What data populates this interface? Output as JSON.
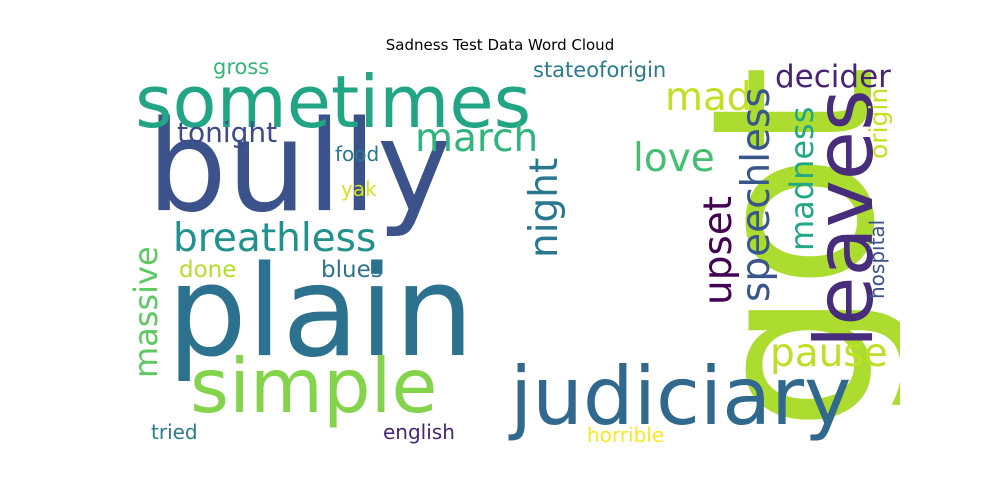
{
  "title": "Sadness Test Data Word Cloud",
  "words": [
    {
      "key": "got",
      "text": "got",
      "color": "#addc30"
    },
    {
      "key": "bully",
      "text": "bully",
      "color": "#3b528b"
    },
    {
      "key": "plain",
      "text": "plain",
      "color": "#2c728e"
    },
    {
      "key": "sometimes",
      "text": "sometimes",
      "color": "#21a585"
    },
    {
      "key": "leaves",
      "text": "leaves",
      "color": "#472d7b"
    },
    {
      "key": "judiciary",
      "text": "judiciary",
      "color": "#31688e"
    },
    {
      "key": "simple",
      "text": "simple",
      "color": "#84d44b"
    },
    {
      "key": "breathless",
      "text": "breathless",
      "color": "#21918c"
    },
    {
      "key": "march",
      "text": "march",
      "color": "#2fb47c"
    },
    {
      "key": "love",
      "text": "love",
      "color": "#44bf70"
    },
    {
      "key": "mad",
      "text": "mad",
      "color": "#c2df23"
    },
    {
      "key": "decider",
      "text": "decider",
      "color": "#482374"
    },
    {
      "key": "tonight",
      "text": "tonight",
      "color": "#3e4a89"
    },
    {
      "key": "night",
      "text": "night",
      "color": "#2a788e"
    },
    {
      "key": "upset",
      "text": "upset",
      "color": "#440154"
    },
    {
      "key": "speechless",
      "text": "speechless",
      "color": "#39568c"
    },
    {
      "key": "madness",
      "text": "madness",
      "color": "#22a884"
    },
    {
      "key": "origin",
      "text": "origin",
      "color": "#c8e020"
    },
    {
      "key": "massive",
      "text": "massive",
      "color": "#5ec962"
    },
    {
      "key": "pause",
      "text": "pause",
      "color": "#bddf26"
    },
    {
      "key": "hospital",
      "text": "hospital",
      "color": "#3b528b"
    },
    {
      "key": "gross",
      "text": "gross",
      "color": "#35b779"
    },
    {
      "key": "stateoforigin",
      "text": "stateoforigin",
      "color": "#287c8e"
    },
    {
      "key": "food",
      "text": "food",
      "color": "#2a788e"
    },
    {
      "key": "yak",
      "text": "yak",
      "color": "#d8e219"
    },
    {
      "key": "done",
      "text": "done",
      "color": "#b5de2b"
    },
    {
      "key": "blues",
      "text": "blues",
      "color": "#2c728e"
    },
    {
      "key": "tried",
      "text": "tried",
      "color": "#287c8e"
    },
    {
      "key": "english",
      "text": "english",
      "color": "#482475"
    },
    {
      "key": "horrible",
      "text": "horrible",
      "color": "#fde725"
    }
  ]
}
